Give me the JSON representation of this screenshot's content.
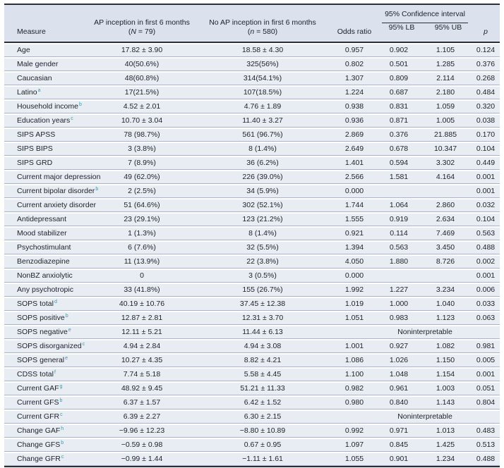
{
  "colors": {
    "rule_dark": "#2c2f38",
    "header_background": "#dbe2ee",
    "row_background": "#e8ecf3",
    "row_separator": "#adb5c3",
    "footnote_marker_teal": "#2f9fae",
    "text": "#20242c"
  },
  "header": {
    "measure": "Measure",
    "ap": {
      "line1": "AP inception in first 6 months",
      "paren_open": "(",
      "n_italic": "N",
      "n_rest": " = 79)"
    },
    "no_ap": {
      "line1": "No AP inception in first 6 months",
      "paren_open": "(",
      "n_italic": "n",
      "n_rest": " = 580)"
    },
    "odds_ratio": "Odds ratio",
    "ci_group": "95% Confidence interval",
    "ci_lb": "95% LB",
    "ci_ub": "95% UB",
    "p": "p"
  },
  "rows": [
    {
      "measure": "Age",
      "ap": "17.82 ± 3.90",
      "no_ap": "18.58 ± 4.30",
      "or": "0.957",
      "lb": "0.902",
      "ub": "1.105",
      "p": "0.124"
    },
    {
      "measure": "Male gender",
      "ap": "40(50.6%)",
      "no_ap": "325(56%)",
      "or": "0.802",
      "lb": "0.501",
      "ub": "1.285",
      "p": "0.376"
    },
    {
      "measure": "Caucasian",
      "ap": "48(60.8%)",
      "no_ap": "314(54.1%)",
      "or": "1.307",
      "lb": "0.809",
      "ub": "2.114",
      "p": "0.268"
    },
    {
      "measure": "Latino",
      "sup": "a",
      "ap": "17(21.5%)",
      "no_ap": "107(18.5%)",
      "or": "1.224",
      "lb": "0.687",
      "ub": "2.180",
      "p": "0.484"
    },
    {
      "measure": "Household income",
      "sup": "b",
      "ap": "4.52 ± 2.01",
      "no_ap": "4.76 ± 1.89",
      "or": "0.938",
      "lb": "0.831",
      "ub": "1.059",
      "p": "0.320"
    },
    {
      "measure": "Education years",
      "sup": "c",
      "ap": "10.70 ± 3.04",
      "no_ap": "11.40 ± 3.27",
      "or": "0.936",
      "lb": "0.871",
      "ub": "1.005",
      "p": "0.038"
    },
    {
      "measure": "SIPS APSS",
      "ap": "78 (98.7%)",
      "no_ap": "561 (96.7%)",
      "or": "2.869",
      "lb": "0.376",
      "ub": "21.885",
      "p": "0.170"
    },
    {
      "measure": "SIPS BIPS",
      "ap": "3 (3.8%)",
      "no_ap": "8 (1.4%)",
      "or": "2.649",
      "lb": "0.678",
      "ub": "10.347",
      "p": "0.104"
    },
    {
      "measure": "SIPS GRD",
      "ap": "7 (8.9%)",
      "no_ap": "36 (6.2%)",
      "or": "1.401",
      "lb": "0.594",
      "ub": "3.302",
      "p": "0.449"
    },
    {
      "measure": "Current major depression",
      "ap": "49 (62.0%)",
      "no_ap": "226 (39.0%)",
      "or": "2.566",
      "lb": "1.581",
      "ub": "4.164",
      "p": "0.001"
    },
    {
      "measure": "Current bipolar disorder",
      "sup": "b",
      "ap": "2 (2.5%)",
      "no_ap": "34 (5.9%)",
      "or": "0.000",
      "lb": "",
      "ub": "",
      "p": "0.001"
    },
    {
      "measure": "Current anxiety disorder",
      "ap": "51 (64.6%)",
      "no_ap": "302 (52.1%)",
      "or": "1.744",
      "lb": "1.064",
      "ub": "2.860",
      "p": "0.032"
    },
    {
      "measure": "Antidepressant",
      "ap": "23 (29.1%)",
      "no_ap": "123 (21.2%)",
      "or": "1.555",
      "lb": "0.919",
      "ub": "2.634",
      "p": "0.104"
    },
    {
      "measure": "Mood stabilizer",
      "ap": "1 (1.3%)",
      "no_ap": "8 (1.4%)",
      "or": "0.921",
      "lb": "0.114",
      "ub": "7.469",
      "p": "0.563"
    },
    {
      "measure": "Psychostimulant",
      "ap": "6 (7.6%)",
      "no_ap": "32 (5.5%)",
      "or": "1.394",
      "lb": "0.563",
      "ub": "3.450",
      "p": "0.488"
    },
    {
      "measure": "Benzodiazepine",
      "ap": "11 (13.9%)",
      "no_ap": "22 (3.8%)",
      "or": "4.050",
      "lb": "1.880",
      "ub": "8.726",
      "p": "0.002"
    },
    {
      "measure": "NonBZ anxiolytic",
      "ap": "0",
      "no_ap": "3 (0.5%)",
      "or": "0.000",
      "lb": "",
      "ub": "",
      "p": "0.001"
    },
    {
      "measure": "Any psychotropic",
      "ap": "33 (41.8%)",
      "no_ap": "155 (26.7%)",
      "or": "1.992",
      "lb": "1.227",
      "ub": "3.234",
      "p": "0.006"
    },
    {
      "measure": "SOPS total",
      "sup": "d",
      "ap": "40.19 ± 10.76",
      "no_ap": "37.45 ± 12.38",
      "or": "1.019",
      "lb": "1.000",
      "ub": "1.040",
      "p": "0.033"
    },
    {
      "measure": "SOPS positive",
      "sup": "b",
      "ap": "12.87 ± 2.81",
      "no_ap": "12.31 ± 3.70",
      "or": "1.051",
      "lb": "0.983",
      "ub": "1.123",
      "p": "0.063"
    },
    {
      "measure": "SOPS negative",
      "sup": "e",
      "ap": "12.11 ± 5.21",
      "no_ap": "11.44 ± 6.13",
      "ci_note": "Noninterpretable"
    },
    {
      "measure": "SOPS disorganized",
      "sup": "c",
      "ap": "4.94 ± 2.84",
      "no_ap": "4.94 ± 3.08",
      "or": "1.001",
      "lb": "0.927",
      "ub": "1.082",
      "p": "0.981"
    },
    {
      "measure": "SOPS general",
      "sup": "e",
      "ap": "10.27 ± 4.35",
      "no_ap": "8.82 ± 4.21",
      "or": "1.086",
      "lb": "1.026",
      "ub": "1.150",
      "p": "0.005"
    },
    {
      "measure": "CDSS total",
      "sup": "f",
      "ap": "7.74 ± 5.18",
      "no_ap": "5.58 ± 4.45",
      "or": "1.100",
      "lb": "1.048",
      "ub": "1.154",
      "p": "0.001"
    },
    {
      "measure": "Current GAF",
      "sup": "g",
      "ap": "48.92 ± 9.45",
      "no_ap": "51.21 ± 11.33",
      "or": "0.982",
      "lb": "0.961",
      "ub": "1.003",
      "p": "0.051"
    },
    {
      "measure": "Current GFS",
      "sup": "b",
      "ap": "6.37 ± 1.57",
      "no_ap": "6.42 ± 1.52",
      "or": "0.980",
      "lb": "0.840",
      "ub": "1.143",
      "p": "0.804"
    },
    {
      "measure": "Current GFR",
      "sup": "c",
      "ap": "6.39 ± 2.27",
      "no_ap": "6.30 ± 2.15",
      "ci_note": "Noninterpretable"
    },
    {
      "measure": "Change GAF",
      "sup": "h",
      "ap": "−9.96 ± 12.23",
      "no_ap": "−8.80 ± 10.89",
      "or": "0.992",
      "lb": "0.971",
      "ub": "1.013",
      "p": "0.483"
    },
    {
      "measure": "Change GFS",
      "sup": "b",
      "ap": "−0.59 ± 0.98",
      "no_ap": "0.67 ± 0.95",
      "or": "1.097",
      "lb": "0.845",
      "ub": "1.425",
      "p": "0.513"
    },
    {
      "measure": "Change GFR",
      "sup": "c",
      "ap": "−0.99 ± 1.44",
      "no_ap": "−1.11 ± 1.61",
      "or": "1.055",
      "lb": "0.901",
      "ub": "1.234",
      "p": "0.488"
    }
  ]
}
